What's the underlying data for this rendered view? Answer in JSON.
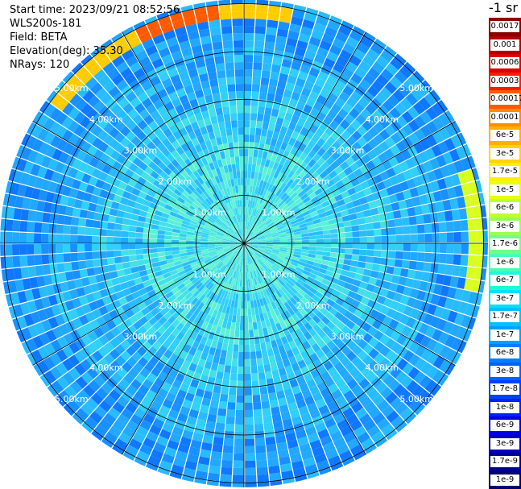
{
  "header": {
    "start_time": "Start time: 2023/09/21 08:52:56",
    "instrument": "WLS200s-181",
    "field": "Field: BETA",
    "elevation": "Elevation(deg): 35.30",
    "nrays": "NRays: 120"
  },
  "colorbar": {
    "title": "-1 sr",
    "labels": [
      "0.0017",
      "0.001",
      "0.0006",
      "0.0003",
      "0.00017",
      "0.0001",
      "6e-5",
      "3e-5",
      "1.7e-5",
      "1e-5",
      "6e-6",
      "3e-6",
      "1.7e-6",
      "1e-6",
      "6e-7",
      "3e-7",
      "1.7e-7",
      "1e-7",
      "6e-8",
      "3e-8",
      "1.7e-8",
      "1e-8",
      "6e-9",
      "3e-9",
      "1.7e-9",
      "1e-9"
    ],
    "colors": [
      "#8b0000",
      "#b00000",
      "#dd0000",
      "#ff1a00",
      "#ff5a00",
      "#ff8c00",
      "#ffb000",
      "#ffd400",
      "#fff000",
      "#e8ff10",
      "#c0ff30",
      "#98ff58",
      "#70ff88",
      "#48ffb0",
      "#20f8d8",
      "#00e0ff",
      "#00c0ff",
      "#00a0ff",
      "#0080ff",
      "#0060ff",
      "#0040ff",
      "#0020f8",
      "#0000e0",
      "#0000b8",
      "#000090",
      "#000070"
    ]
  },
  "ring_labels": [
    "1.00km",
    "2.00km",
    "3.00km",
    "4.00km",
    "5.00km"
  ]
}
